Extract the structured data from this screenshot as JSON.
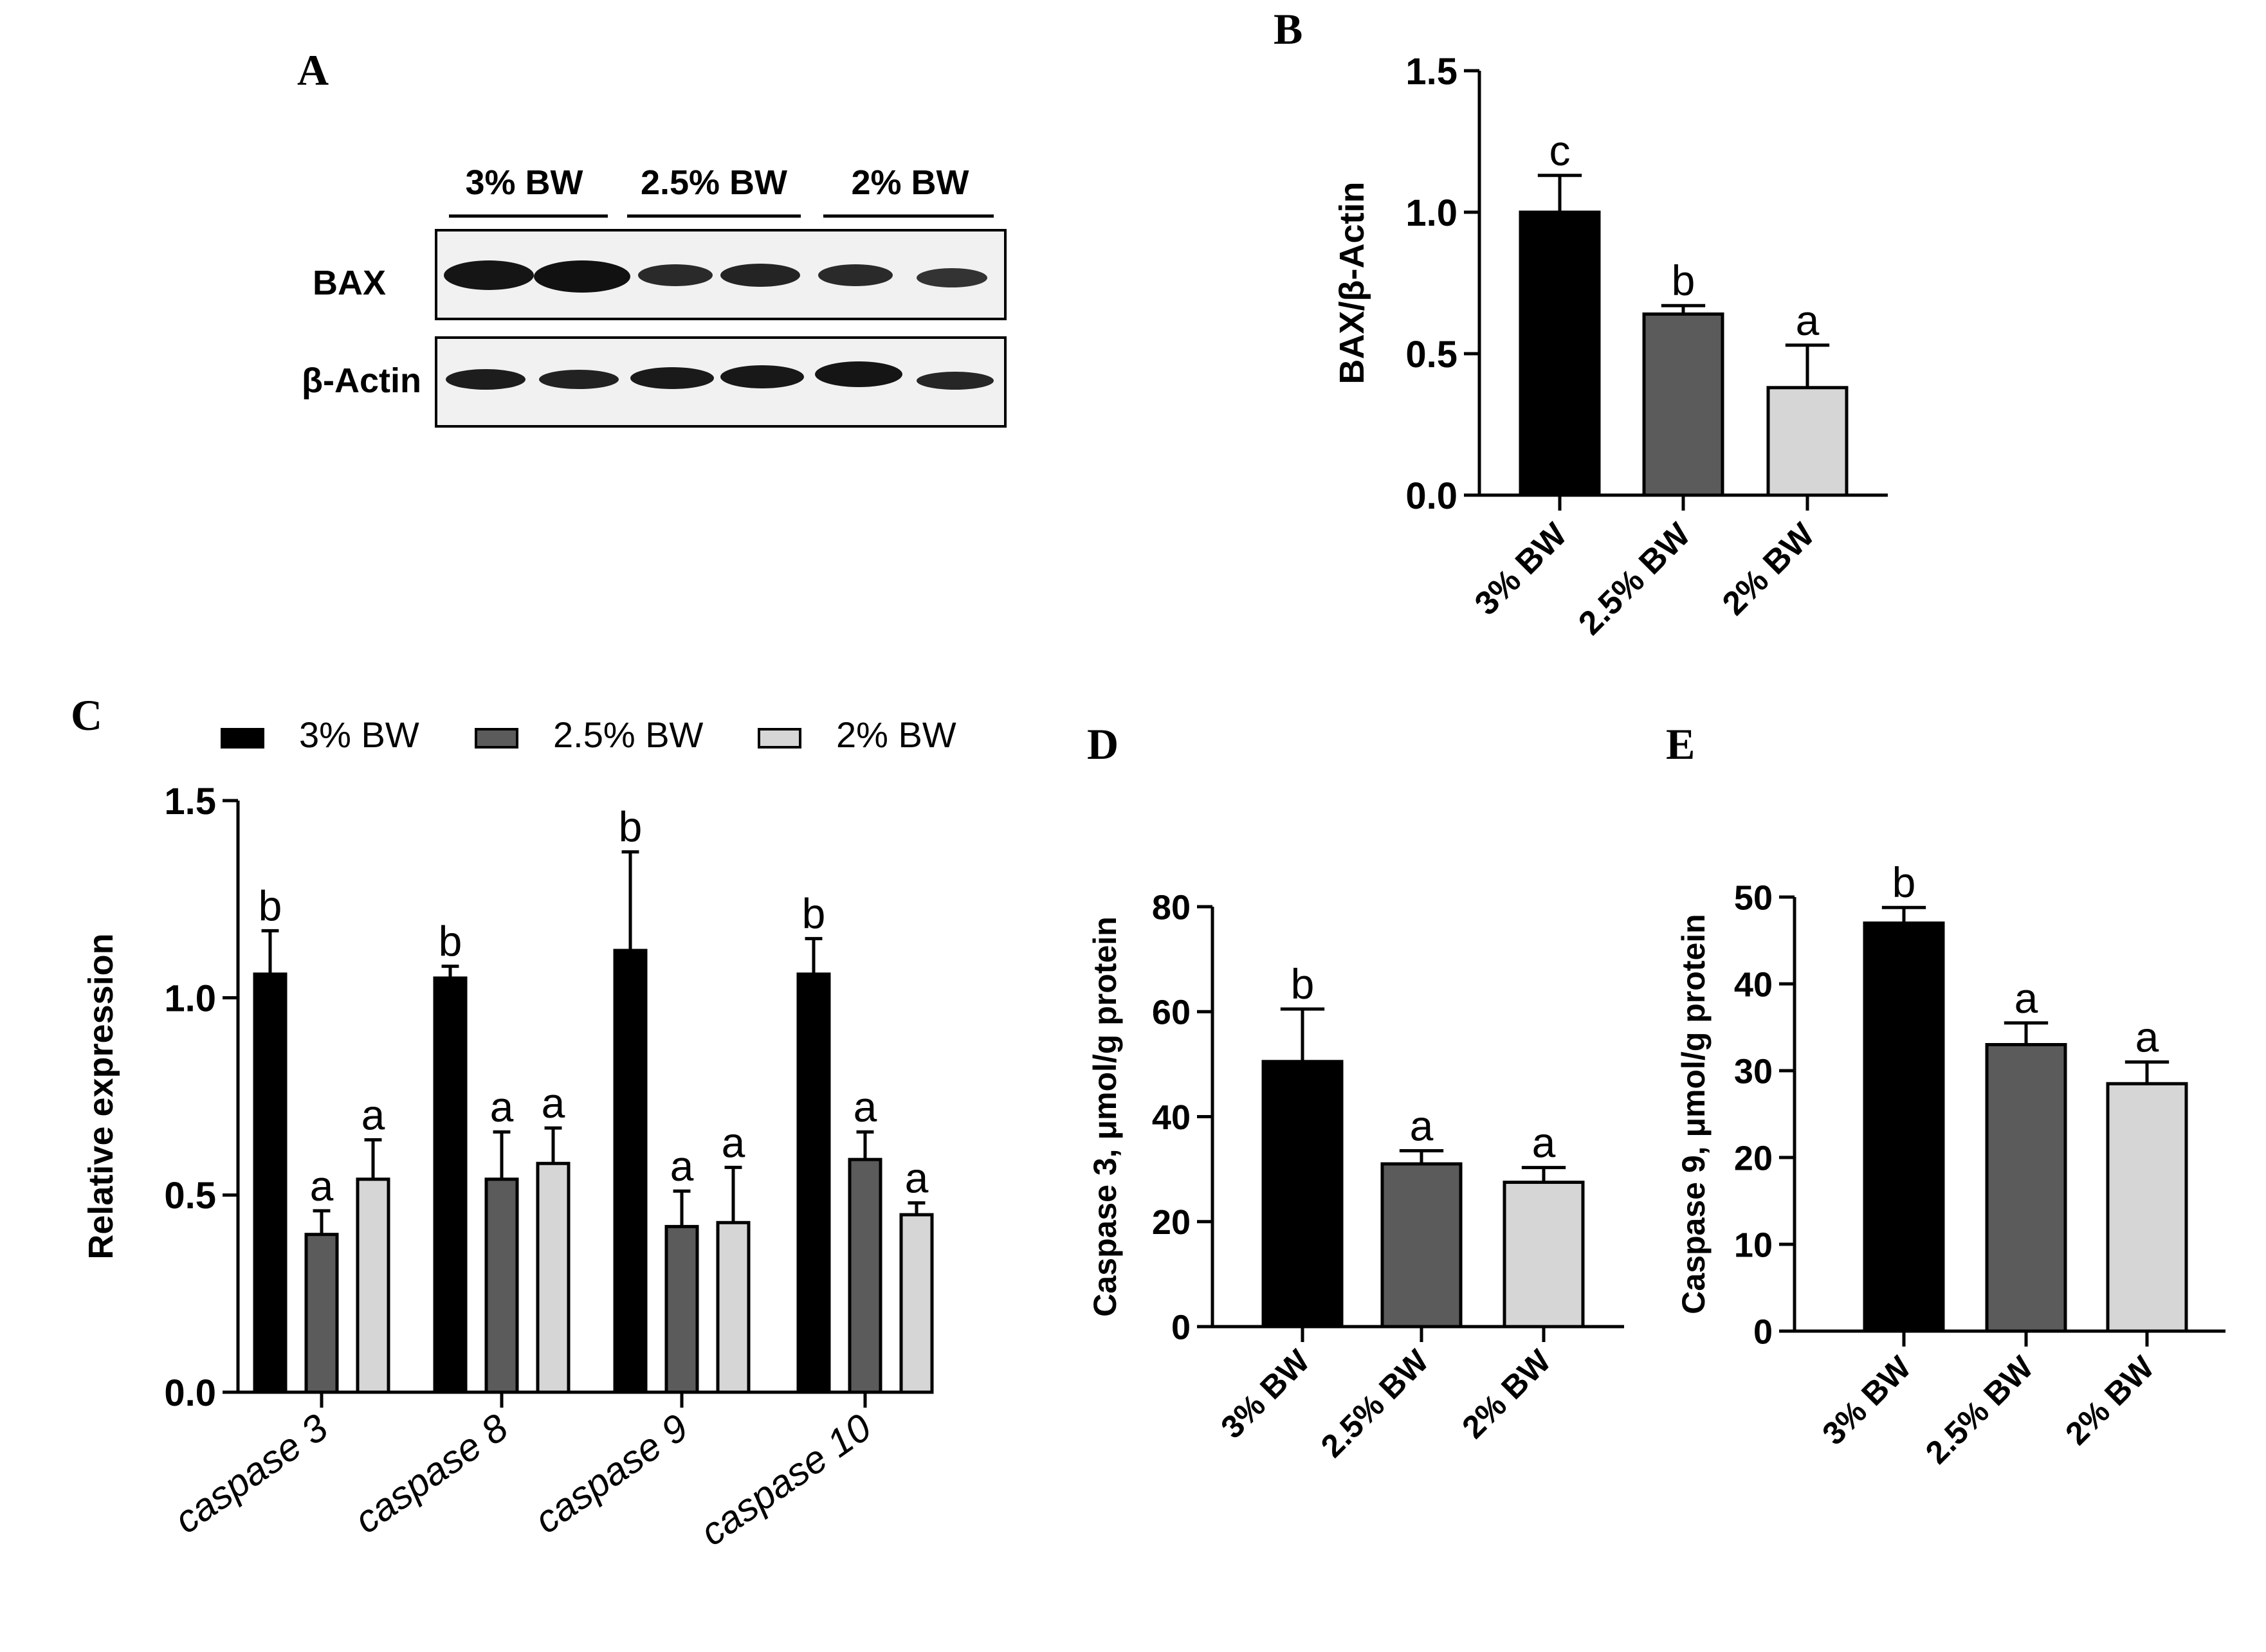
{
  "panels": {
    "A": {
      "letter": "A",
      "groups": [
        "3% BW",
        "2.5% BW",
        "2% BW"
      ],
      "rows": [
        "BAX",
        "β-Actin"
      ]
    },
    "B": {
      "letter": "B"
    },
    "C": {
      "letter": "C"
    },
    "D": {
      "letter": "D"
    },
    "E": {
      "letter": "E"
    }
  },
  "colors": {
    "bw3": "#000000",
    "bw25": "#5b5b5b",
    "bw2": "#d6d6d6",
    "axis": "#000000"
  },
  "chart_data": [
    {
      "id": "B",
      "type": "bar",
      "categories": [
        "3% BW",
        "2.5% BW",
        "2% BW"
      ],
      "values": [
        1.0,
        0.64,
        0.38
      ],
      "errors": [
        0.13,
        0.03,
        0.15
      ],
      "letters": [
        "c",
        "b",
        "a"
      ],
      "ylabel": "BAX/β-Actin",
      "ylim": [
        0,
        1.5
      ],
      "yticks": [
        0.0,
        0.5,
        1.0,
        1.5
      ],
      "ytick_labels": [
        "0.0",
        "0.5",
        "1.0",
        "1.5"
      ]
    },
    {
      "id": "C",
      "type": "bar",
      "categories": [
        "caspase 3",
        "caspase 8",
        "caspase 9",
        "caspase 10"
      ],
      "series": [
        {
          "name": "3% BW",
          "values": [
            1.06,
            1.05,
            1.12,
            1.06
          ],
          "errors": [
            0.11,
            0.03,
            0.25,
            0.09
          ],
          "letters": [
            "b",
            "b",
            "b",
            "b"
          ]
        },
        {
          "name": "2.5% BW",
          "values": [
            0.4,
            0.54,
            0.42,
            0.59
          ],
          "errors": [
            0.06,
            0.12,
            0.09,
            0.07
          ],
          "letters": [
            "a",
            "a",
            "a",
            "a"
          ]
        },
        {
          "name": "2% BW",
          "values": [
            0.54,
            0.58,
            0.43,
            0.45
          ],
          "errors": [
            0.1,
            0.09,
            0.14,
            0.03
          ],
          "letters": [
            "a",
            "a",
            "a",
            "a"
          ]
        }
      ],
      "ylabel": "Relative expression",
      "ylim": [
        0,
        1.5
      ],
      "yticks": [
        0.0,
        0.5,
        1.0,
        1.5
      ],
      "ytick_labels": [
        "0.0",
        "0.5",
        "1.0",
        "1.5"
      ],
      "legend": "top"
    },
    {
      "id": "D",
      "type": "bar",
      "categories": [
        "3% BW",
        "2.5% BW",
        "2% BW"
      ],
      "values": [
        50.5,
        31,
        27.5
      ],
      "errors": [
        10,
        2.5,
        2.8
      ],
      "letters": [
        "b",
        "a",
        "a"
      ],
      "ylabel": "Caspase 3, μmol/g protein",
      "ylim": [
        0,
        80
      ],
      "yticks": [
        0,
        20,
        40,
        60,
        80
      ],
      "ytick_labels": [
        "0",
        "20",
        "40",
        "60",
        "80"
      ]
    },
    {
      "id": "E",
      "type": "bar",
      "categories": [
        "3% BW",
        "2.5% BW",
        "2% BW"
      ],
      "values": [
        47,
        33,
        28.5
      ],
      "errors": [
        1.8,
        2.5,
        2.5
      ],
      "letters": [
        "b",
        "a",
        "a"
      ],
      "ylabel": "Caspase 9, μmol/g protein",
      "ylim": [
        0,
        50
      ],
      "yticks": [
        0,
        10,
        20,
        30,
        40,
        50
      ],
      "ytick_labels": [
        "0",
        "10",
        "20",
        "30",
        "40",
        "50"
      ]
    }
  ]
}
